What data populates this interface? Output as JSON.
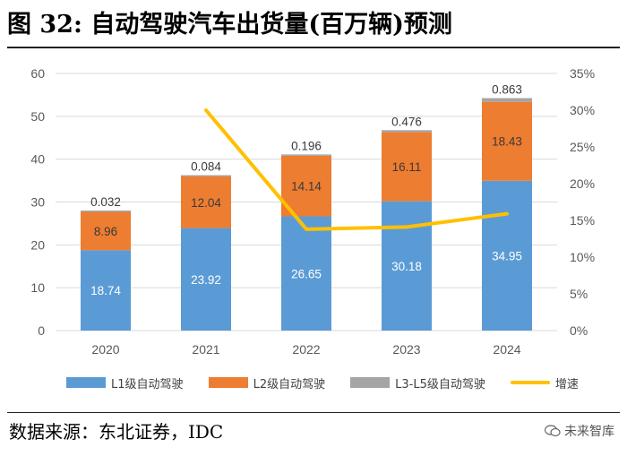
{
  "title": "图 32: 自动驾驶汽车出货量(百万辆)预测",
  "source": "数据来源：东北证券，IDC",
  "watermark": {
    "text": "未来智库",
    "icon": "wechat-bubble-icon"
  },
  "colors": {
    "l1": "#5b9bd5",
    "l2": "#ed7d31",
    "l35": "#a5a5a5",
    "growth": "#ffc000",
    "grid": "#d9d9d9",
    "axis_text": "#595959"
  },
  "chart_data": {
    "type": "bar",
    "stacked": true,
    "categories": [
      "2020",
      "2021",
      "2022",
      "2023",
      "2024"
    ],
    "series": [
      {
        "name": "L1级自动驾驶",
        "values": [
          18.74,
          23.92,
          26.65,
          30.18,
          34.95
        ],
        "value_labels": [
          "18.74",
          "23.92",
          "26.65",
          "30.18",
          "34.95"
        ]
      },
      {
        "name": "L2级自动驾驶",
        "values": [
          8.96,
          12.04,
          14.14,
          16.11,
          18.43
        ],
        "value_labels": [
          "8.96",
          "12.04",
          "14.14",
          "16.11",
          "18.43"
        ]
      },
      {
        "name": "L3-L5级自动驾驶",
        "values": [
          0.032,
          0.084,
          0.196,
          0.476,
          0.863
        ],
        "value_labels": [
          "0.032",
          "0.084",
          "0.196",
          "0.476",
          "0.863"
        ]
      }
    ],
    "line_series": {
      "name": "增速",
      "axis": "right",
      "values": [
        null,
        30.0,
        13.8,
        14.1,
        15.9
      ]
    },
    "ylim": [
      0,
      60
    ],
    "yticks": [
      "0",
      "10",
      "20",
      "30",
      "40",
      "50",
      "60"
    ],
    "y2lim": [
      0,
      35
    ],
    "y2ticks": [
      "0%",
      "5%",
      "10%",
      "15%",
      "20%",
      "25%",
      "30%",
      "35%"
    ],
    "grid": true,
    "legend_position": "bottom"
  }
}
